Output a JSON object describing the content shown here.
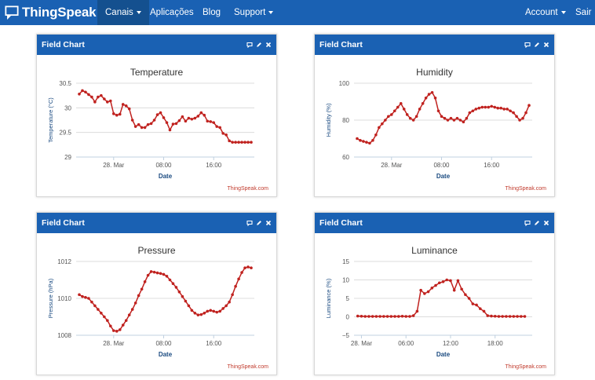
{
  "navbar": {
    "brand": "ThingSpeak",
    "brand_icon": "chat-bubble-icon",
    "items": [
      {
        "label": "Canais",
        "dropdown": true,
        "active": true
      },
      {
        "label": "Aplicações",
        "dropdown": false,
        "active": false
      },
      {
        "label": "Blog",
        "dropdown": false,
        "active": false
      },
      {
        "label": "Support",
        "dropdown": true,
        "active": false
      }
    ],
    "right_items": [
      {
        "label": "Account",
        "dropdown": true
      },
      {
        "label": "Sair",
        "dropdown": false
      }
    ]
  },
  "colors": {
    "primary": "#1a61b3",
    "line": "#c0221f",
    "title_text": "#333333",
    "axis_label": "#1a4a80"
  },
  "panel_header_icons": [
    "comment-icon",
    "pencil-icon",
    "close-icon"
  ],
  "panels": [
    {
      "header": "Field Chart",
      "credit": "ThingSpeak.com"
    },
    {
      "header": "Field Chart",
      "credit": "ThingSpeak.com"
    },
    {
      "header": "Field Chart",
      "credit": "ThingSpeak.com"
    },
    {
      "header": "Field Chart",
      "credit": "ThingSpeak.com"
    }
  ],
  "chart_data": [
    {
      "type": "line",
      "title": "Temperature",
      "xlabel": "Date",
      "ylabel": "Temperature (°C)",
      "ylim": [
        29,
        30.5
      ],
      "yticks": [
        29,
        29.5,
        30,
        30.5
      ],
      "ytick_labels": [
        "29",
        "29.5",
        "30",
        "30.5"
      ],
      "xlim": [
        -6,
        22.5
      ],
      "xticks": [
        0,
        8,
        16
      ],
      "xtick_labels": [
        "28. Mar",
        "08:00",
        "16:00"
      ],
      "x": [
        -5.5,
        -5,
        -4.5,
        -4,
        -3.5,
        -3,
        -2.5,
        -2,
        -1.5,
        -1,
        -0.5,
        0,
        0.5,
        1,
        1.5,
        2,
        2.5,
        3,
        3.5,
        4,
        4.5,
        5,
        5.5,
        6,
        6.5,
        7,
        7.5,
        8,
        8.5,
        9,
        9.5,
        10,
        10.5,
        11,
        11.5,
        12,
        12.5,
        13,
        13.5,
        14,
        14.5,
        15,
        15.5,
        16,
        16.5,
        17,
        17.5,
        18,
        18.5,
        19,
        19.5,
        20,
        20.5,
        21,
        21.5,
        22
      ],
      "y": [
        30.28,
        30.35,
        30.32,
        30.27,
        30.22,
        30.12,
        30.22,
        30.25,
        30.18,
        30.12,
        30.14,
        29.88,
        29.85,
        29.87,
        30.07,
        30.04,
        29.98,
        29.75,
        29.62,
        29.66,
        29.6,
        29.6,
        29.66,
        29.68,
        29.75,
        29.86,
        29.9,
        29.8,
        29.7,
        29.55,
        29.67,
        29.68,
        29.74,
        29.82,
        29.73,
        29.79,
        29.77,
        29.79,
        29.83,
        29.9,
        29.85,
        29.73,
        29.72,
        29.7,
        29.62,
        29.6,
        29.48,
        29.45,
        29.33,
        29.3,
        29.3,
        29.3,
        29.3,
        29.3,
        29.3,
        29.3
      ]
    },
    {
      "type": "line",
      "title": "Humidity",
      "xlabel": "Date",
      "ylabel": "Humidity (%)",
      "ylim": [
        60,
        100
      ],
      "yticks": [
        60,
        80,
        100
      ],
      "ytick_labels": [
        "60",
        "80",
        "100"
      ],
      "xlim": [
        -6,
        22.5
      ],
      "xticks": [
        0,
        8,
        16
      ],
      "xtick_labels": [
        "28. Mar",
        "08:00",
        "16:00"
      ],
      "x": [
        -5.5,
        -5,
        -4.5,
        -4,
        -3.5,
        -3,
        -2.5,
        -2,
        -1.5,
        -1,
        -0.5,
        0,
        0.5,
        1,
        1.5,
        2,
        2.5,
        3,
        3.5,
        4,
        4.5,
        5,
        5.5,
        6,
        6.5,
        7,
        7.5,
        8,
        8.5,
        9,
        9.5,
        10,
        10.5,
        11,
        11.5,
        12,
        12.5,
        13,
        13.5,
        14,
        14.5,
        15,
        15.5,
        16,
        16.5,
        17,
        17.5,
        18,
        18.5,
        19,
        19.5,
        20,
        20.5,
        21,
        21.5,
        22
      ],
      "y": [
        70,
        69,
        68.5,
        68,
        67.5,
        69,
        72,
        76,
        78,
        80,
        82,
        83,
        85,
        87,
        89,
        86,
        83,
        81,
        80,
        82,
        86,
        89,
        92,
        94,
        95,
        92,
        85,
        82,
        81,
        80,
        81,
        80,
        81,
        80,
        79,
        81,
        84,
        85,
        86,
        86.5,
        87,
        87,
        87,
        87.5,
        87,
        86.5,
        86.5,
        86,
        86,
        85,
        84,
        82,
        80,
        81,
        84,
        88
      ]
    },
    {
      "type": "line",
      "title": "Pressure",
      "xlabel": "Date",
      "ylabel": "Pressure (hPa)",
      "ylim": [
        1008,
        1012
      ],
      "yticks": [
        1008,
        1010,
        1012
      ],
      "ytick_labels": [
        "1008",
        "1010",
        "1012"
      ],
      "xlim": [
        -6,
        22.5
      ],
      "xticks": [
        0,
        8,
        16
      ],
      "xtick_labels": [
        "28. Mar",
        "08:00",
        "16:00"
      ],
      "x": [
        -5.5,
        -5,
        -4.5,
        -4,
        -3.5,
        -3,
        -2.5,
        -2,
        -1.5,
        -1,
        -0.5,
        0,
        0.5,
        1,
        1.5,
        2,
        2.5,
        3,
        3.5,
        4,
        4.5,
        5,
        5.5,
        6,
        6.5,
        7,
        7.5,
        8,
        8.5,
        9,
        9.5,
        10,
        10.5,
        11,
        11.5,
        12,
        12.5,
        13,
        13.5,
        14,
        14.5,
        15,
        15.5,
        16,
        16.5,
        17,
        17.5,
        18,
        18.5,
        19,
        19.5,
        20,
        20.5,
        21,
        21.5,
        22
      ],
      "y": [
        1010.2,
        1010.1,
        1010.05,
        1010,
        1009.8,
        1009.6,
        1009.4,
        1009.2,
        1009,
        1008.8,
        1008.5,
        1008.25,
        1008.22,
        1008.3,
        1008.55,
        1008.8,
        1009.1,
        1009.4,
        1009.75,
        1010.15,
        1010.5,
        1010.9,
        1011.25,
        1011.45,
        1011.42,
        1011.38,
        1011.35,
        1011.3,
        1011.2,
        1011.0,
        1010.8,
        1010.6,
        1010.35,
        1010.1,
        1009.85,
        1009.6,
        1009.35,
        1009.2,
        1009.1,
        1009.12,
        1009.2,
        1009.3,
        1009.35,
        1009.3,
        1009.25,
        1009.3,
        1009.45,
        1009.6,
        1009.8,
        1010.2,
        1010.65,
        1011.05,
        1011.4,
        1011.65,
        1011.7,
        1011.65
      ]
    },
    {
      "type": "line",
      "title": "Luminance",
      "xlabel": "Date",
      "ylabel": "Luminance (%)",
      "ylim": [
        -5,
        15
      ],
      "yticks": [
        -5,
        0,
        5,
        10,
        15
      ],
      "ytick_labels": [
        "−5",
        "0",
        "5",
        "10",
        "15"
      ],
      "xlim": [
        -1,
        23
      ],
      "xticks": [
        0,
        6,
        12,
        18
      ],
      "xtick_labels": [
        "28. Mar",
        "06:00",
        "12:00",
        "18:00"
      ],
      "x": [
        -0.5,
        0,
        0.5,
        1,
        1.5,
        2,
        2.5,
        3,
        3.5,
        4,
        4.5,
        5,
        5.5,
        6,
        6.5,
        7,
        7.5,
        8,
        8.5,
        9,
        9.5,
        10,
        10.5,
        11,
        11.5,
        12,
        12.5,
        13,
        13.5,
        14,
        14.5,
        15,
        15.5,
        16,
        16.5,
        17,
        17.5,
        18,
        18.5,
        19,
        19.5,
        20,
        20.5,
        21,
        21.5,
        22
      ],
      "y": [
        0.2,
        0.15,
        0.1,
        0.1,
        0.1,
        0.1,
        0.1,
        0.1,
        0.1,
        0.1,
        0.1,
        0.1,
        0.15,
        0.1,
        0.1,
        0.3,
        1.5,
        7.2,
        6.3,
        6.8,
        7.8,
        8.5,
        9.2,
        9.5,
        10,
        9.8,
        7.2,
        9.8,
        7.5,
        6,
        5,
        3.5,
        3.2,
        2.2,
        1.5,
        0.3,
        0.2,
        0.15,
        0.1,
        0.1,
        0.1,
        0.1,
        0.1,
        0.1,
        0.1,
        0.1
      ]
    }
  ]
}
